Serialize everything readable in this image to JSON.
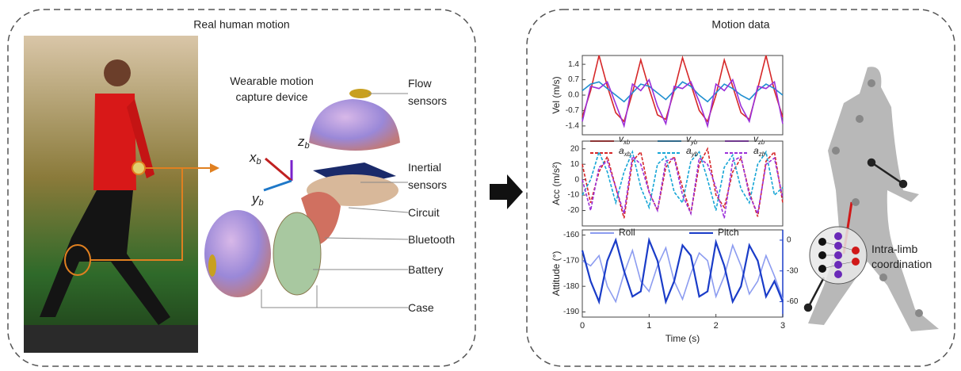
{
  "left_panel": {
    "title": "Real human motion",
    "device_label": "Wearable motion capture device",
    "axis_labels": [
      {
        "name": "z",
        "sub": "b"
      },
      {
        "name": "x",
        "sub": "b"
      },
      {
        "name": "y",
        "sub": "b"
      }
    ],
    "parts": [
      "Flow sensors",
      "Inertial sensors",
      "Circuit",
      "Bluetooth",
      "Battery",
      "Case"
    ]
  },
  "right_panel": {
    "title": "Motion data",
    "x_label": "Time (s)",
    "xlim": [
      0,
      3
    ],
    "xticks": [
      0,
      1,
      2,
      3
    ],
    "x": [
      0,
      0.125,
      0.25,
      0.375,
      0.5,
      0.625,
      0.75,
      0.875,
      1,
      1.125,
      1.25,
      1.375,
      1.5,
      1.625,
      1.75,
      1.875,
      2,
      2.125,
      2.25,
      2.375,
      2.5,
      2.625,
      2.75,
      2.875,
      3
    ],
    "plots": [
      {
        "y_label": "Vel (m/s)",
        "ylim": [
          -1.8,
          1.8
        ],
        "yticks": [
          1.4,
          0.7,
          {
            "value": 0,
            "label": "0.0"
          },
          -0.7,
          -1.4
        ],
        "series": [
          {
            "name": "v",
            "name_sub": "xb",
            "color": "#d62728",
            "dash": false,
            "values": [
              -1.0,
              0.2,
              1.8,
              0.4,
              -0.8,
              -1.2,
              0.1,
              1.6,
              0.3,
              -0.9,
              -1.1,
              0.2,
              1.7,
              0.5,
              -0.7,
              -1.2,
              0.0,
              1.6,
              0.4,
              -0.8,
              -1.1,
              0.3,
              1.8,
              0.2,
              -1.0
            ]
          },
          {
            "name": "v",
            "name_sub": "yb",
            "color": "#1f8fd0",
            "dash": false,
            "values": [
              0.2,
              0.5,
              0.6,
              0.3,
              0.0,
              -0.3,
              0.1,
              0.5,
              0.4,
              0.1,
              -0.2,
              0.2,
              0.6,
              0.4,
              0.0,
              -0.3,
              0.1,
              0.5,
              0.3,
              0.0,
              -0.2,
              0.2,
              0.5,
              0.3,
              0.0
            ]
          },
          {
            "name": "v",
            "name_sub": "zb",
            "color": "#9b30d9",
            "dash": false,
            "values": [
              -1.2,
              0.4,
              0.3,
              0.6,
              -0.4,
              -1.4,
              0.5,
              0.2,
              0.7,
              -0.5,
              -1.3,
              0.4,
              0.3,
              0.6,
              -0.3,
              -1.4,
              0.5,
              0.2,
              0.7,
              -0.5,
              -1.2,
              0.4,
              0.3,
              0.6,
              -1.3
            ]
          }
        ]
      },
      {
        "y_label": "Acc (m/s²)",
        "ylim": [
          -30,
          25
        ],
        "yticks": [
          20,
          10,
          0,
          -10,
          -20
        ],
        "series": [
          {
            "name": "a",
            "name_sub": "xb",
            "color": "#d62728",
            "dash": true,
            "values": [
              10,
              -15,
              5,
              15,
              -5,
              -25,
              12,
              18,
              -8,
              -20,
              8,
              15,
              -5,
              -22,
              10,
              20,
              -10,
              -18,
              5,
              14,
              -8,
              -24,
              12,
              18,
              -15
            ]
          },
          {
            "name": "a",
            "name_sub": "yb",
            "color": "#17a6d6",
            "dash": true,
            "values": [
              -10,
              0,
              18,
              5,
              -15,
              5,
              18,
              -5,
              -18,
              10,
              15,
              -8,
              -15,
              12,
              18,
              0,
              -20,
              8,
              16,
              -6,
              -15,
              10,
              18,
              -10,
              -5
            ]
          },
          {
            "name": "a",
            "name_sub": "zb",
            "color": "#9b30d9",
            "dash": true,
            "values": [
              0,
              -20,
              8,
              12,
              -5,
              -22,
              15,
              10,
              -8,
              -20,
              12,
              14,
              -10,
              -22,
              14,
              10,
              -5,
              -25,
              12,
              15,
              -10,
              -22,
              10,
              14,
              -12
            ]
          }
        ]
      },
      {
        "y_label": "Attitude (°)",
        "ylim": [
          -192,
          -158
        ],
        "yticks": [
          -160,
          -170,
          -180,
          -190
        ],
        "y2lim": [
          -75,
          10
        ],
        "y2ticks": [
          0,
          -30,
          -60
        ],
        "series": [
          {
            "name": "Roll",
            "color": "#8c9cf0",
            "dash": false,
            "values": [
              -170,
              -172,
              -168,
              -180,
              -186,
              -175,
              -166,
              -178,
              -182,
              -172,
              -165,
              -178,
              -185,
              -175,
              -167,
              -170,
              -184,
              -176,
              -164,
              -172,
              -183,
              -178,
              -168,
              -176,
              -185
            ]
          },
          {
            "name": "Pitch",
            "color": "#1a3cc8",
            "dash": false,
            "axis": "y2",
            "values": [
              -10,
              -40,
              -60,
              -20,
              0,
              -30,
              -55,
              -50,
              0,
              -20,
              -60,
              -40,
              -5,
              -15,
              -55,
              -50,
              -2,
              -25,
              -60,
              -45,
              -5,
              -20,
              -55,
              -40,
              -60
            ]
          }
        ]
      }
    ],
    "coordination_label": "Intra-limb coordination"
  }
}
